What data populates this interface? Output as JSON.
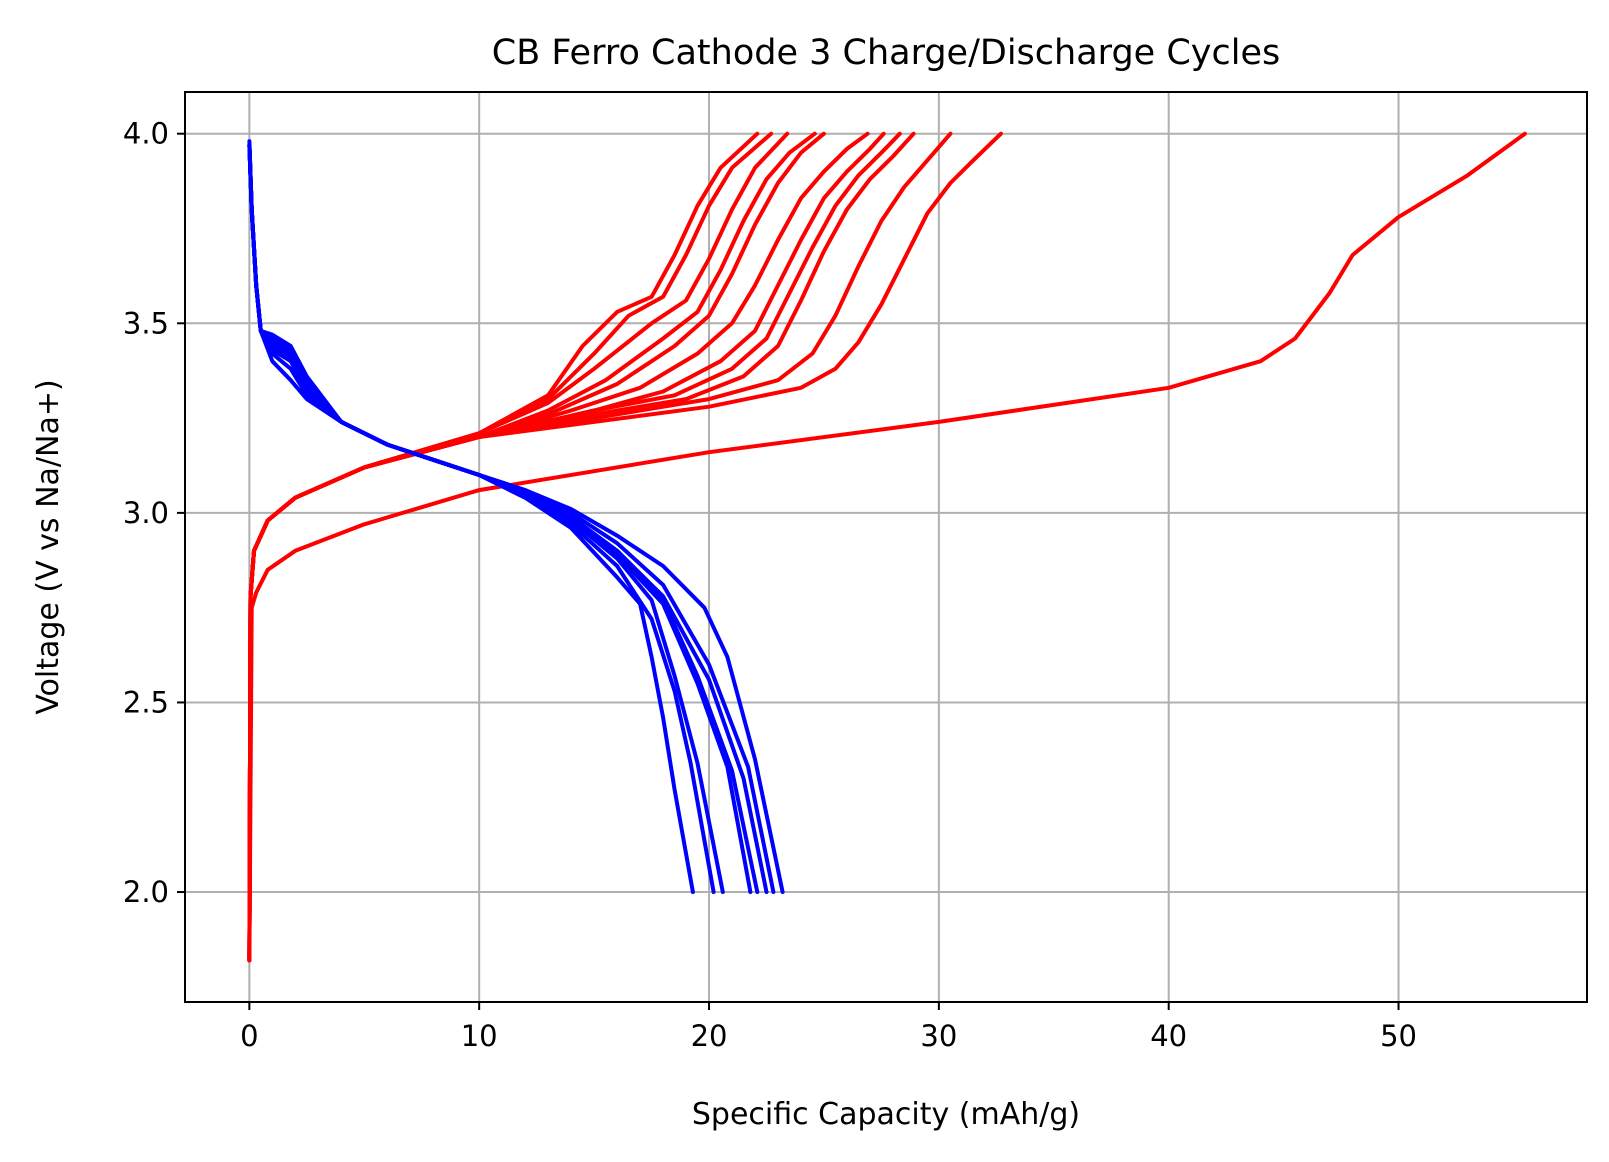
{
  "chart_data": {
    "type": "line",
    "title": "CB Ferro Cathode 3 Charge/Discharge Cycles",
    "xlabel": "Specific Capacity (mAh/g)",
    "ylabel": "Voltage (V vs Na/Na+)",
    "xlim": [
      -2.8,
      58.2
    ],
    "ylim": [
      1.71,
      4.11
    ],
    "xticks": [
      0,
      10,
      20,
      30,
      40,
      50
    ],
    "yticks": [
      2.0,
      2.5,
      3.0,
      3.5,
      4.0
    ],
    "grid": true,
    "legend": "none",
    "colors": {
      "charge": "#ff0000",
      "discharge": "#0000ff",
      "grid": "#b0b0b0",
      "axes": "#000000"
    },
    "series": [
      {
        "role": "charge",
        "color": "#ff0000",
        "x": [
          0,
          0.1,
          0.3,
          0.8,
          2,
          5,
          10,
          20,
          30,
          40,
          44,
          45.5,
          47,
          48,
          50,
          53,
          55.5
        ],
        "y": [
          1.82,
          2.75,
          2.79,
          2.85,
          2.9,
          2.97,
          3.06,
          3.16,
          3.24,
          3.33,
          3.4,
          3.46,
          3.58,
          3.68,
          3.78,
          3.89,
          4.0
        ]
      },
      {
        "role": "charge",
        "color": "#ff0000",
        "x": [
          0,
          0.05,
          0.2,
          0.8,
          2,
          5,
          10,
          15,
          20,
          24,
          25.5,
          26.5,
          27.5,
          28.5,
          29.5,
          30.5,
          31.5,
          32.7
        ],
        "y": [
          1.82,
          2.78,
          2.9,
          2.98,
          3.04,
          3.12,
          3.2,
          3.24,
          3.28,
          3.33,
          3.38,
          3.45,
          3.55,
          3.67,
          3.79,
          3.87,
          3.93,
          4.0
        ]
      },
      {
        "role": "charge",
        "color": "#ff0000",
        "x": [
          0,
          0.05,
          0.2,
          0.8,
          2,
          5,
          10,
          15,
          20,
          23,
          24.5,
          25.5,
          26.5,
          27.5,
          28.5,
          29.5,
          30.5
        ],
        "y": [
          1.82,
          2.78,
          2.9,
          2.98,
          3.04,
          3.12,
          3.2,
          3.25,
          3.3,
          3.35,
          3.42,
          3.52,
          3.65,
          3.77,
          3.86,
          3.93,
          4.0
        ]
      },
      {
        "role": "charge",
        "color": "#ff0000",
        "x": [
          0,
          0.05,
          0.2,
          0.8,
          2,
          5,
          10,
          15,
          19,
          21.5,
          23,
          24,
          25,
          26,
          27,
          28,
          28.9
        ],
        "y": [
          1.82,
          2.78,
          2.9,
          2.98,
          3.04,
          3.12,
          3.2,
          3.26,
          3.3,
          3.36,
          3.44,
          3.56,
          3.69,
          3.8,
          3.88,
          3.94,
          4.0
        ]
      },
      {
        "role": "charge",
        "color": "#ff0000",
        "x": [
          0,
          0.05,
          0.2,
          0.8,
          2,
          5,
          10,
          15,
          18.5,
          21,
          22.5,
          23.5,
          24.5,
          25.5,
          26.5,
          27.5,
          28.3
        ],
        "y": [
          1.82,
          2.78,
          2.9,
          2.98,
          3.04,
          3.12,
          3.2,
          3.27,
          3.31,
          3.38,
          3.46,
          3.58,
          3.7,
          3.81,
          3.89,
          3.95,
          4.0
        ]
      },
      {
        "role": "charge",
        "color": "#ff0000",
        "x": [
          0,
          0.05,
          0.2,
          0.8,
          2,
          5,
          10,
          15,
          18,
          20.5,
          22,
          23,
          24,
          25,
          26,
          27,
          27.6
        ],
        "y": [
          1.82,
          2.78,
          2.9,
          2.98,
          3.04,
          3.12,
          3.2,
          3.27,
          3.32,
          3.4,
          3.48,
          3.6,
          3.72,
          3.83,
          3.9,
          3.96,
          4.0
        ]
      },
      {
        "role": "charge",
        "color": "#ff0000",
        "x": [
          0,
          0.05,
          0.2,
          0.8,
          2,
          5,
          10,
          14,
          17,
          19.5,
          21,
          22,
          23,
          24,
          25,
          26,
          26.9
        ],
        "y": [
          1.82,
          2.78,
          2.9,
          2.98,
          3.04,
          3.12,
          3.2,
          3.27,
          3.33,
          3.42,
          3.5,
          3.6,
          3.72,
          3.83,
          3.9,
          3.96,
          4.0
        ]
      },
      {
        "role": "charge",
        "color": "#ff0000",
        "x": [
          0,
          0.05,
          0.2,
          0.8,
          2,
          5,
          10,
          13,
          16,
          18.5,
          20,
          21,
          22,
          23,
          24,
          25
        ],
        "y": [
          1.82,
          2.78,
          2.9,
          2.98,
          3.04,
          3.12,
          3.2,
          3.26,
          3.34,
          3.44,
          3.52,
          3.63,
          3.76,
          3.87,
          3.95,
          4.0
        ]
      },
      {
        "role": "charge",
        "color": "#ff0000",
        "x": [
          0,
          0.05,
          0.2,
          0.8,
          2,
          5,
          10,
          13,
          15.5,
          18,
          19.5,
          20.5,
          21.5,
          22.5,
          23.5,
          24.6
        ],
        "y": [
          1.82,
          2.78,
          2.9,
          2.98,
          3.04,
          3.12,
          3.2,
          3.27,
          3.35,
          3.46,
          3.53,
          3.64,
          3.77,
          3.88,
          3.95,
          4.0
        ]
      },
      {
        "role": "charge",
        "color": "#ff0000",
        "x": [
          0,
          0.05,
          0.2,
          0.8,
          2,
          5,
          10,
          13,
          15,
          17.5,
          19,
          20,
          21,
          22,
          23.4
        ],
        "y": [
          1.82,
          2.78,
          2.9,
          2.98,
          3.04,
          3.12,
          3.21,
          3.29,
          3.38,
          3.5,
          3.56,
          3.67,
          3.8,
          3.91,
          4.0
        ]
      },
      {
        "role": "charge",
        "color": "#ff0000",
        "x": [
          0,
          0.05,
          0.2,
          0.8,
          2,
          5,
          10,
          13,
          15,
          16.5,
          18,
          19,
          20,
          21,
          22.7
        ],
        "y": [
          1.82,
          2.78,
          2.9,
          2.98,
          3.04,
          3.12,
          3.21,
          3.3,
          3.42,
          3.52,
          3.57,
          3.68,
          3.81,
          3.91,
          4.0
        ]
      },
      {
        "role": "charge",
        "color": "#ff0000",
        "x": [
          0,
          0.05,
          0.2,
          0.8,
          2,
          5,
          10,
          13,
          14.5,
          16,
          17.5,
          18.5,
          19.5,
          20.5,
          22.1
        ],
        "y": [
          1.82,
          2.78,
          2.9,
          2.98,
          3.04,
          3.12,
          3.21,
          3.31,
          3.44,
          3.53,
          3.57,
          3.68,
          3.81,
          3.91,
          4.0
        ]
      },
      {
        "role": "discharge",
        "color": "#0000ff",
        "x": [
          0,
          0.1,
          0.3,
          0.5,
          1,
          1.8,
          2.5,
          4,
          6,
          8,
          10,
          12,
          14,
          16,
          17,
          17.5,
          18,
          18.5,
          19.3
        ],
        "y": [
          3.98,
          3.8,
          3.6,
          3.48,
          3.4,
          3.35,
          3.3,
          3.24,
          3.18,
          3.14,
          3.1,
          3.04,
          2.96,
          2.83,
          2.76,
          2.62,
          2.46,
          2.27,
          2.0
        ]
      },
      {
        "role": "discharge",
        "color": "#0000ff",
        "x": [
          0,
          0.1,
          0.3,
          0.5,
          1,
          1.8,
          2.5,
          4,
          6,
          8,
          10,
          12,
          14,
          16,
          17.5,
          18.5,
          19.2,
          20.2
        ],
        "y": [
          3.97,
          3.8,
          3.6,
          3.48,
          3.42,
          3.38,
          3.31,
          3.24,
          3.18,
          3.14,
          3.1,
          3.04,
          2.97,
          2.86,
          2.72,
          2.53,
          2.34,
          2.0
        ]
      },
      {
        "role": "discharge",
        "color": "#0000ff",
        "x": [
          0,
          0.1,
          0.3,
          0.5,
          1,
          1.8,
          2.5,
          4,
          6,
          8,
          10,
          12,
          14,
          16,
          17.5,
          18.5,
          19.5,
          20.6
        ],
        "y": [
          3.97,
          3.8,
          3.6,
          3.48,
          3.43,
          3.4,
          3.32,
          3.24,
          3.18,
          3.14,
          3.1,
          3.05,
          2.98,
          2.88,
          2.77,
          2.57,
          2.34,
          2.0
        ]
      },
      {
        "role": "discharge",
        "color": "#0000ff",
        "x": [
          0,
          0.1,
          0.3,
          0.5,
          1,
          1.8,
          2.5,
          4,
          6,
          8,
          10,
          12,
          14,
          16,
          18,
          19.5,
          20.8,
          21.8
        ],
        "y": [
          3.97,
          3.8,
          3.6,
          3.48,
          3.44,
          3.41,
          3.33,
          3.24,
          3.18,
          3.14,
          3.1,
          3.05,
          2.98,
          2.89,
          2.76,
          2.55,
          2.33,
          2.0
        ]
      },
      {
        "role": "discharge",
        "color": "#0000ff",
        "x": [
          0,
          0.1,
          0.3,
          0.5,
          1,
          1.8,
          2.5,
          4,
          6,
          8,
          10,
          12,
          14,
          16,
          18,
          19.5,
          21,
          22.1
        ],
        "y": [
          3.97,
          3.8,
          3.6,
          3.48,
          3.45,
          3.42,
          3.34,
          3.24,
          3.18,
          3.14,
          3.1,
          3.05,
          2.99,
          2.9,
          2.77,
          2.57,
          2.32,
          2.0
        ]
      },
      {
        "role": "discharge",
        "color": "#0000ff",
        "x": [
          0,
          0.1,
          0.3,
          0.5,
          1,
          1.8,
          2.5,
          4,
          6,
          8,
          10,
          12,
          14,
          16,
          18,
          20,
          21.5,
          22.5
        ],
        "y": [
          3.97,
          3.8,
          3.6,
          3.48,
          3.46,
          3.43,
          3.35,
          3.24,
          3.18,
          3.14,
          3.1,
          3.05,
          2.99,
          2.9,
          2.78,
          2.56,
          2.3,
          2.0
        ]
      },
      {
        "role": "discharge",
        "color": "#0000ff",
        "x": [
          0,
          0.1,
          0.3,
          0.5,
          1,
          1.8,
          2.5,
          4,
          6,
          8,
          10,
          12,
          14,
          16,
          18,
          20,
          21.7,
          22.8
        ],
        "y": [
          3.97,
          3.8,
          3.6,
          3.48,
          3.46,
          3.43,
          3.35,
          3.24,
          3.18,
          3.14,
          3.1,
          3.06,
          3.0,
          2.92,
          2.81,
          2.6,
          2.33,
          2.0
        ]
      },
      {
        "role": "discharge",
        "color": "#0000ff",
        "x": [
          0,
          0.1,
          0.3,
          0.5,
          1,
          1.8,
          2.5,
          4,
          6,
          8,
          10,
          12,
          14,
          16,
          18,
          19.8,
          20.8,
          22,
          23.2
        ],
        "y": [
          3.97,
          3.8,
          3.6,
          3.48,
          3.47,
          3.44,
          3.36,
          3.24,
          3.18,
          3.14,
          3.1,
          3.06,
          3.01,
          2.94,
          2.86,
          2.75,
          2.62,
          2.35,
          2.0
        ]
      }
    ]
  }
}
